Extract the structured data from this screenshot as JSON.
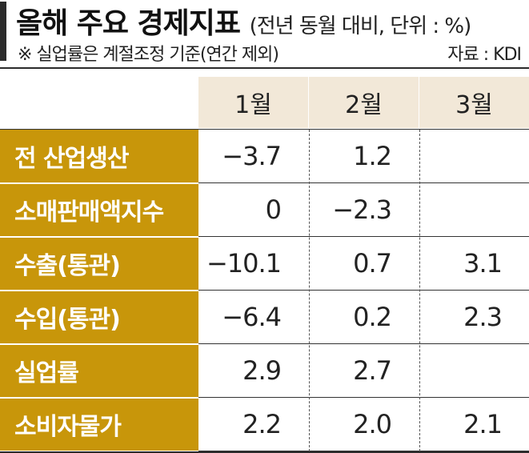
{
  "header": {
    "title": "올해 주요 경제지표",
    "unit": "(전년 동월 대비, 단위 : %)",
    "note": "※ 실업률은 계절조정 기준(연간 제외)",
    "source": "자료 : KDI"
  },
  "chart_data": {
    "type": "table",
    "columns": [
      "1월",
      "2월",
      "3월"
    ],
    "rows": [
      {
        "label": "전 산업생산",
        "values": [
          "−3.7",
          "1.2",
          ""
        ]
      },
      {
        "label": "소매판매액지수",
        "values": [
          "0",
          "−2.3",
          ""
        ]
      },
      {
        "label": "수출(통관)",
        "values": [
          "−10.1",
          "0.7",
          "3.1"
        ]
      },
      {
        "label": "수입(통관)",
        "values": [
          "−6.4",
          "0.2",
          "2.3"
        ]
      },
      {
        "label": "실업률",
        "values": [
          "2.9",
          "2.7",
          ""
        ]
      },
      {
        "label": "소비자물가",
        "values": [
          "2.2",
          "2.0",
          "2.1"
        ]
      }
    ]
  },
  "colors": {
    "label_background": "#c8960a",
    "header_background": "#f2e8d8",
    "label_text": "#ffffff"
  }
}
